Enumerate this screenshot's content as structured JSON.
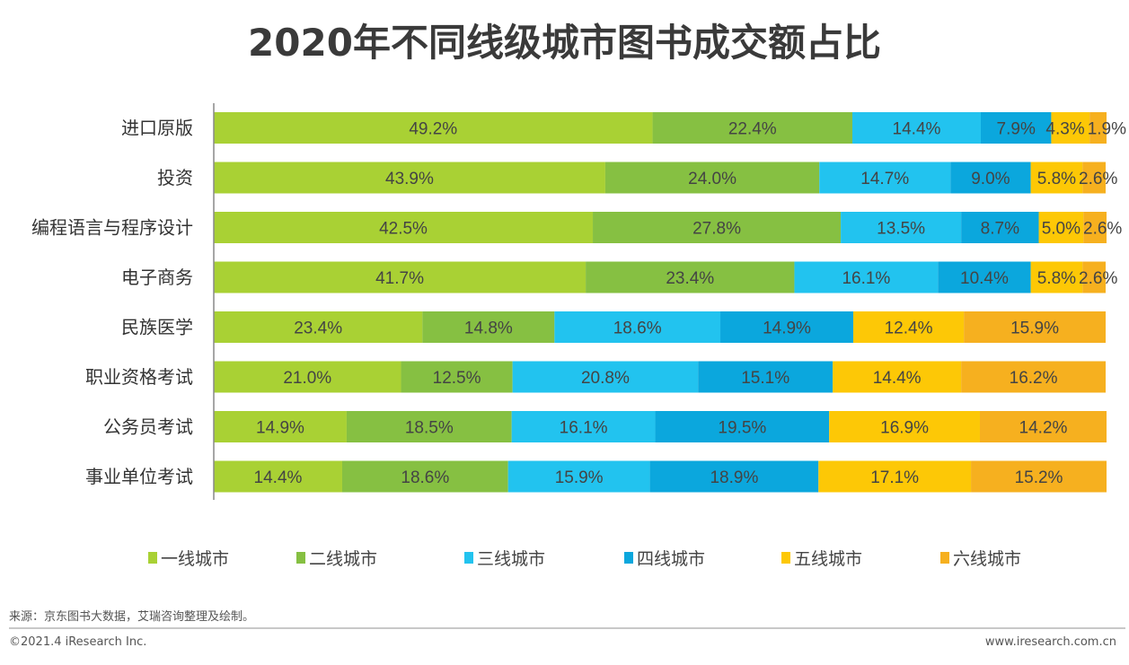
{
  "chart_data": {
    "type": "bar",
    "orientation": "horizontal",
    "stacked": "percent",
    "title": "2020年不同线级城市图书成交额占比",
    "categories": [
      "进口原版",
      "投资",
      "编程语言与程序设计",
      "电子商务",
      "民族医学",
      "职业资格考试",
      "公务员考试",
      "事业单位考试"
    ],
    "series": [
      {
        "name": "一线城市",
        "color": "#a9d134",
        "values": [
          49.2,
          43.9,
          42.5,
          41.7,
          23.4,
          21.0,
          14.9,
          14.4
        ]
      },
      {
        "name": "二线城市",
        "color": "#86c042",
        "values": [
          22.4,
          24.0,
          27.8,
          23.4,
          14.8,
          12.5,
          18.5,
          18.6
        ]
      },
      {
        "name": "三线城市",
        "color": "#22c3ef",
        "values": [
          14.4,
          14.7,
          13.5,
          16.1,
          18.6,
          20.8,
          16.1,
          15.9
        ]
      },
      {
        "name": "四线城市",
        "color": "#0ba7dd",
        "values": [
          7.9,
          9.0,
          8.7,
          10.4,
          14.9,
          15.1,
          19.5,
          18.9
        ]
      },
      {
        "name": "五线城市",
        "color": "#fdc806",
        "values": [
          4.3,
          5.8,
          5.0,
          5.8,
          12.4,
          14.4,
          16.9,
          17.1
        ]
      },
      {
        "name": "六线城市",
        "color": "#f6b01f",
        "values": [
          1.9,
          2.6,
          2.6,
          2.6,
          15.9,
          16.2,
          14.2,
          15.2
        ]
      }
    ],
    "value_format": "%",
    "xlim": [
      0,
      100
    ],
    "grid": false,
    "legend_position": "bottom"
  },
  "footer": {
    "source": "来源：京东图书大数据，艾瑞咨询整理及绘制。",
    "copyright": "©2021.4 iResearch Inc.",
    "website": "www.iresearch.com.cn"
  }
}
